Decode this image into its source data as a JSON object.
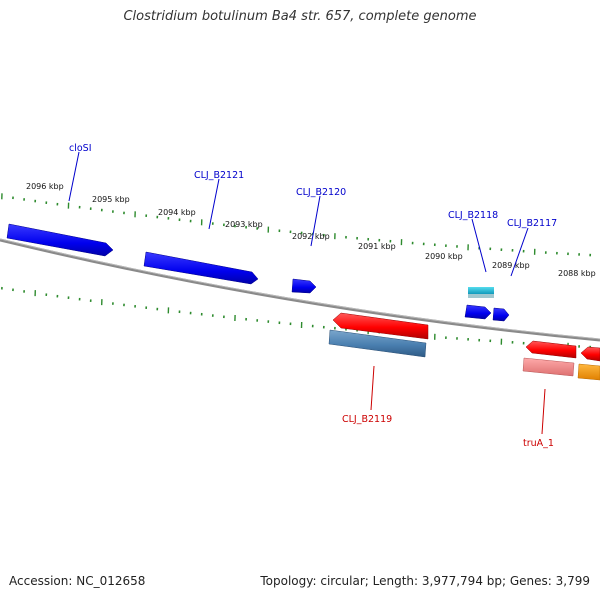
{
  "title": "Clostridium botulinum Ba4 str. 657, complete genome",
  "accession": "Accession: NC_012658",
  "summary": "Topology: circular; Length: 3,977,794 bp; Genes: 3,799",
  "colors": {
    "backbone": "#8a8a8a",
    "ticks": "#2e8b2e",
    "forward_gene": "#0000ee",
    "reverse_gene": "#ff0000",
    "forward_label": "#0000cc",
    "reverse_label": "#cc0000",
    "cyan_feature": "#22bbdd",
    "steelblue_feature": "#4a7fb0",
    "pink_feature": "#ee8888",
    "orange_feature": "#ff9900"
  },
  "kbp_labels": [
    "2096 kbp",
    "2095 kbp",
    "2094 kbp",
    "2093 kbp",
    "2092 kbp",
    "2091 kbp",
    "2090 kbp",
    "2089 kbp",
    "2088 kbp"
  ],
  "gene_labels": {
    "closi": "cloSI",
    "b2121": "CLJ_B2121",
    "b2120": "CLJ_B2120",
    "b2118": "CLJ_B2118",
    "b2117": "CLJ_B2117",
    "b2119": "CLJ_B2119",
    "truA": "truA_1"
  }
}
